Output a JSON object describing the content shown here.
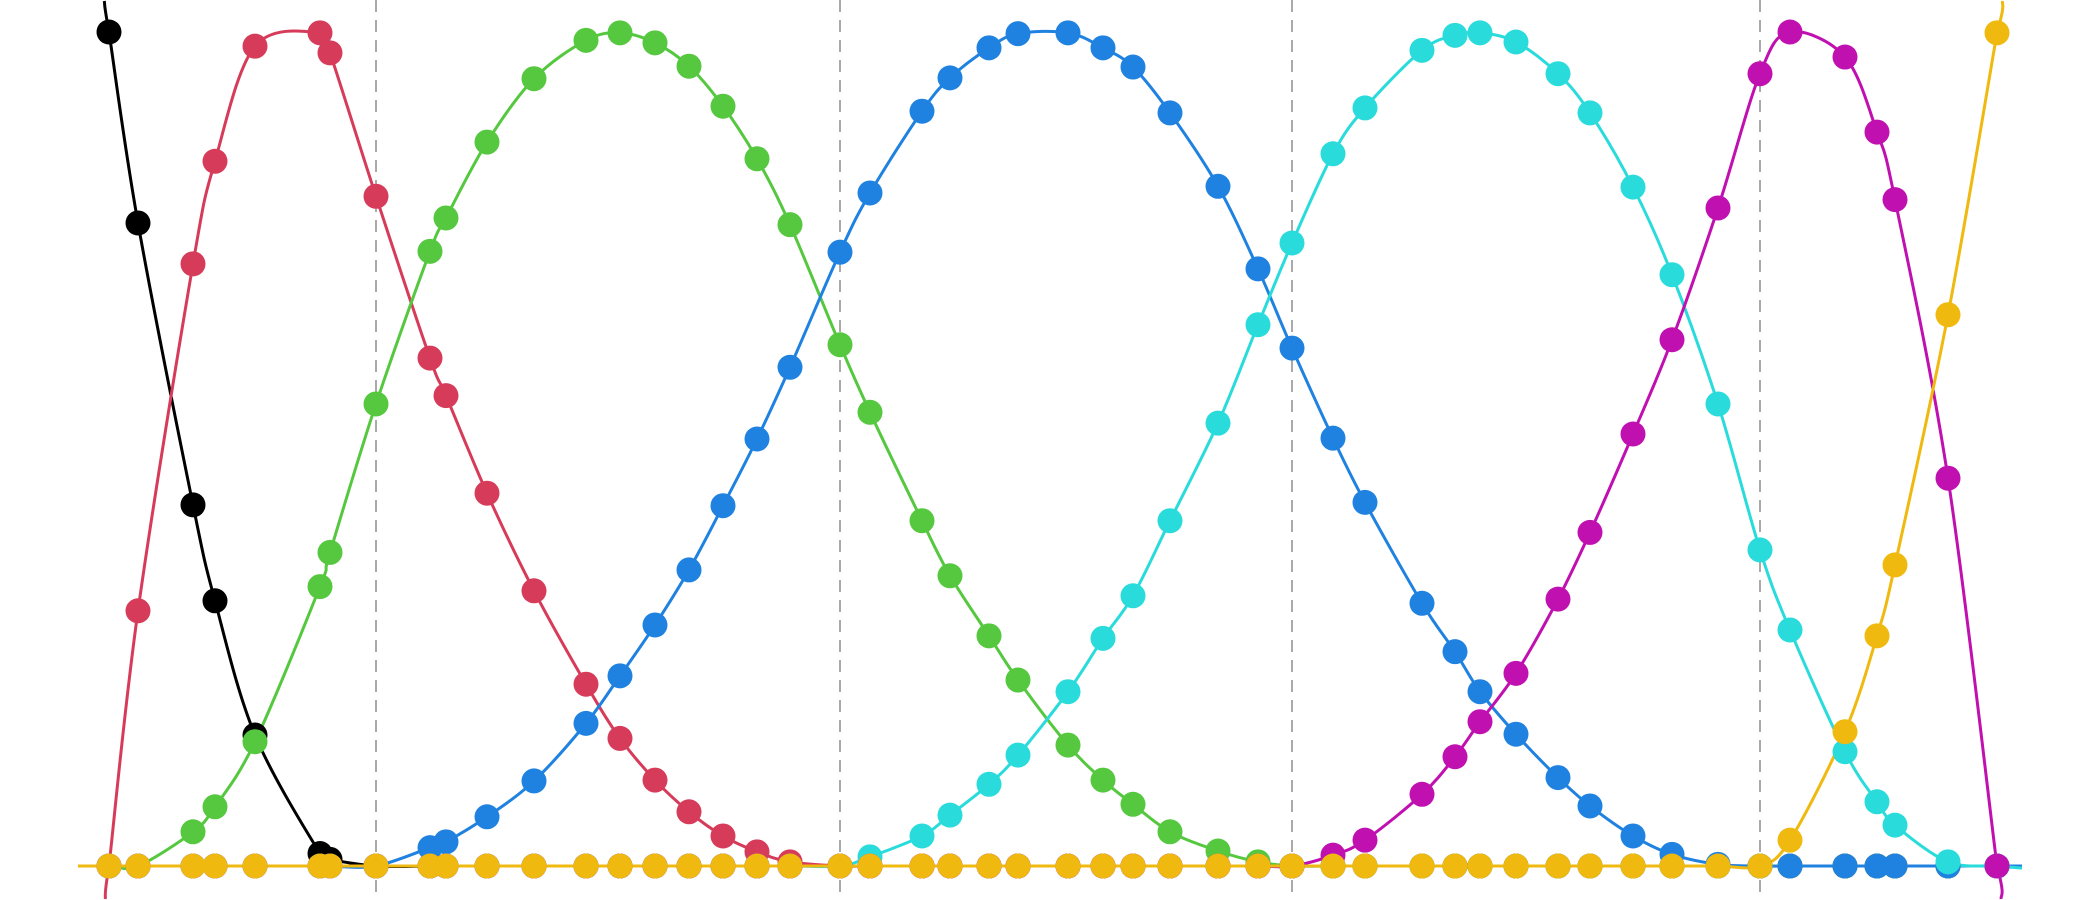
{
  "chart_data": {
    "type": "line",
    "title": "",
    "xlabel": "",
    "ylabel": "",
    "grid": false,
    "legend": "none",
    "markers": true,
    "xlim": [
      0,
      97.2
    ],
    "ylim": [
      -4,
      104
    ],
    "vertical_dashed_lines": [
      14.9,
      38.1,
      60.7,
      84.1
    ],
    "vline_color": "#aaaaaa",
    "x": [
      1.55,
      3.0,
      5.75,
      6.85,
      8.85,
      12.1,
      12.6,
      14.9,
      17.6,
      18.4,
      20.45,
      22.8,
      25.4,
      27.1,
      28.85,
      30.55,
      32.25,
      33.95,
      35.6,
      38.1,
      39.6,
      42.2,
      43.6,
      45.55,
      47.0,
      49.5,
      51.25,
      52.75,
      54.6,
      57.0,
      59.0,
      60.7,
      62.75,
      64.35,
      67.2,
      68.85,
      70.1,
      71.9,
      74.0,
      75.6,
      77.75,
      79.7,
      82.0,
      84.1,
      85.6,
      88.35,
      89.95,
      90.85,
      93.5,
      95.95
    ],
    "series": [
      {
        "color": "#000000",
        "values": [
          100,
          77.1,
          43.3,
          31.8,
          15.7,
          1.5,
          0.8,
          0,
          0,
          0,
          0,
          0,
          0,
          0,
          0,
          0,
          0,
          0,
          0,
          0,
          0,
          0,
          0,
          0,
          0,
          0,
          0,
          0,
          0,
          0,
          0,
          0,
          0,
          0,
          0,
          0,
          0,
          0,
          0,
          0,
          0,
          0,
          0,
          0,
          0,
          0,
          0,
          0,
          0,
          0
        ]
      },
      {
        "color": "#d63c5a",
        "values": [
          0,
          30.6,
          72.2,
          84.5,
          98.3,
          99.9,
          97.5,
          80.3,
          60.9,
          56.4,
          44.7,
          33.0,
          21.8,
          15.3,
          10.3,
          6.5,
          3.6,
          1.7,
          0.5,
          0,
          0,
          0,
          0,
          0,
          0,
          0,
          0,
          0,
          0,
          0,
          0,
          0,
          0,
          0,
          0,
          0,
          0,
          0,
          0,
          0,
          0,
          0,
          0,
          0,
          0,
          0,
          0,
          0,
          0,
          0
        ]
      },
      {
        "color": "#55c83f",
        "values": [
          0,
          0,
          4.1,
          7.1,
          14.9,
          33.5,
          37.6,
          55.4,
          73.7,
          77.7,
          86.8,
          94.4,
          99.0,
          99.9,
          98.7,
          95.9,
          91.1,
          84.8,
          76.9,
          62.5,
          54.4,
          41.4,
          34.8,
          27.6,
          22.3,
          14.5,
          10.3,
          7.4,
          4.1,
          1.8,
          0.5,
          0,
          0,
          0,
          0,
          0,
          0,
          0,
          0,
          0,
          0,
          0,
          0,
          0,
          0,
          0,
          0,
          0,
          0,
          0
        ]
      },
      {
        "color": "#1f82e0",
        "values": [
          0,
          0,
          0,
          0,
          0,
          0,
          0,
          0,
          2.2,
          2.9,
          5.9,
          10.2,
          17.1,
          22.8,
          28.9,
          35.5,
          43.2,
          51.2,
          59.8,
          73.6,
          80.7,
          90.5,
          94.5,
          98.1,
          99.8,
          99.9,
          98.1,
          95.8,
          90.3,
          81.5,
          71.6,
          62.1,
          51.3,
          43.6,
          31.5,
          25.7,
          20.9,
          15.8,
          10.6,
          7.2,
          3.6,
          1.4,
          0.2,
          0,
          0,
          0,
          0,
          0,
          0,
          0
        ]
      },
      {
        "color": "#2adbdb",
        "values": [
          0,
          0,
          0,
          0,
          0,
          0,
          0,
          0,
          0,
          0,
          0,
          0,
          0,
          0,
          0,
          0,
          0,
          0,
          0,
          0,
          1.1,
          3.6,
          6.1,
          9.8,
          13.3,
          20.9,
          27.3,
          32.4,
          41.4,
          53.1,
          64.9,
          74.7,
          85.4,
          90.9,
          97.8,
          99.6,
          99.9,
          98.8,
          95.0,
          90.3,
          81.4,
          70.9,
          55.4,
          37.9,
          28.3,
          13.7,
          7.7,
          4.9,
          0.5,
          0
        ]
      },
      {
        "color": "#c010b0",
        "values": [
          0,
          0,
          0,
          0,
          0,
          0,
          0,
          0,
          0,
          0,
          0,
          0,
          0,
          0,
          0,
          0,
          0,
          0,
          0,
          0,
          0,
          0,
          0,
          0,
          0,
          0,
          0,
          0,
          0,
          0,
          0,
          0,
          1.3,
          3.1,
          8.6,
          13.1,
          17.3,
          23.1,
          32.0,
          40.0,
          51.8,
          63.1,
          78.9,
          95.0,
          100,
          97.0,
          88.0,
          79.9,
          46.5,
          0
        ]
      },
      {
        "color": "#f0b90f",
        "values": [
          0,
          0,
          0,
          0,
          0,
          0,
          0,
          0,
          0,
          0,
          0,
          0,
          0,
          0,
          0,
          0,
          0,
          0,
          0,
          0,
          0,
          0,
          0,
          0,
          0,
          0,
          0,
          0,
          0,
          0,
          0,
          0,
          0,
          0,
          0,
          0,
          0,
          0,
          0,
          0,
          0,
          0,
          0,
          0,
          3.1,
          16.1,
          27.6,
          36.1,
          66.1,
          99.9
        ]
      }
    ]
  }
}
